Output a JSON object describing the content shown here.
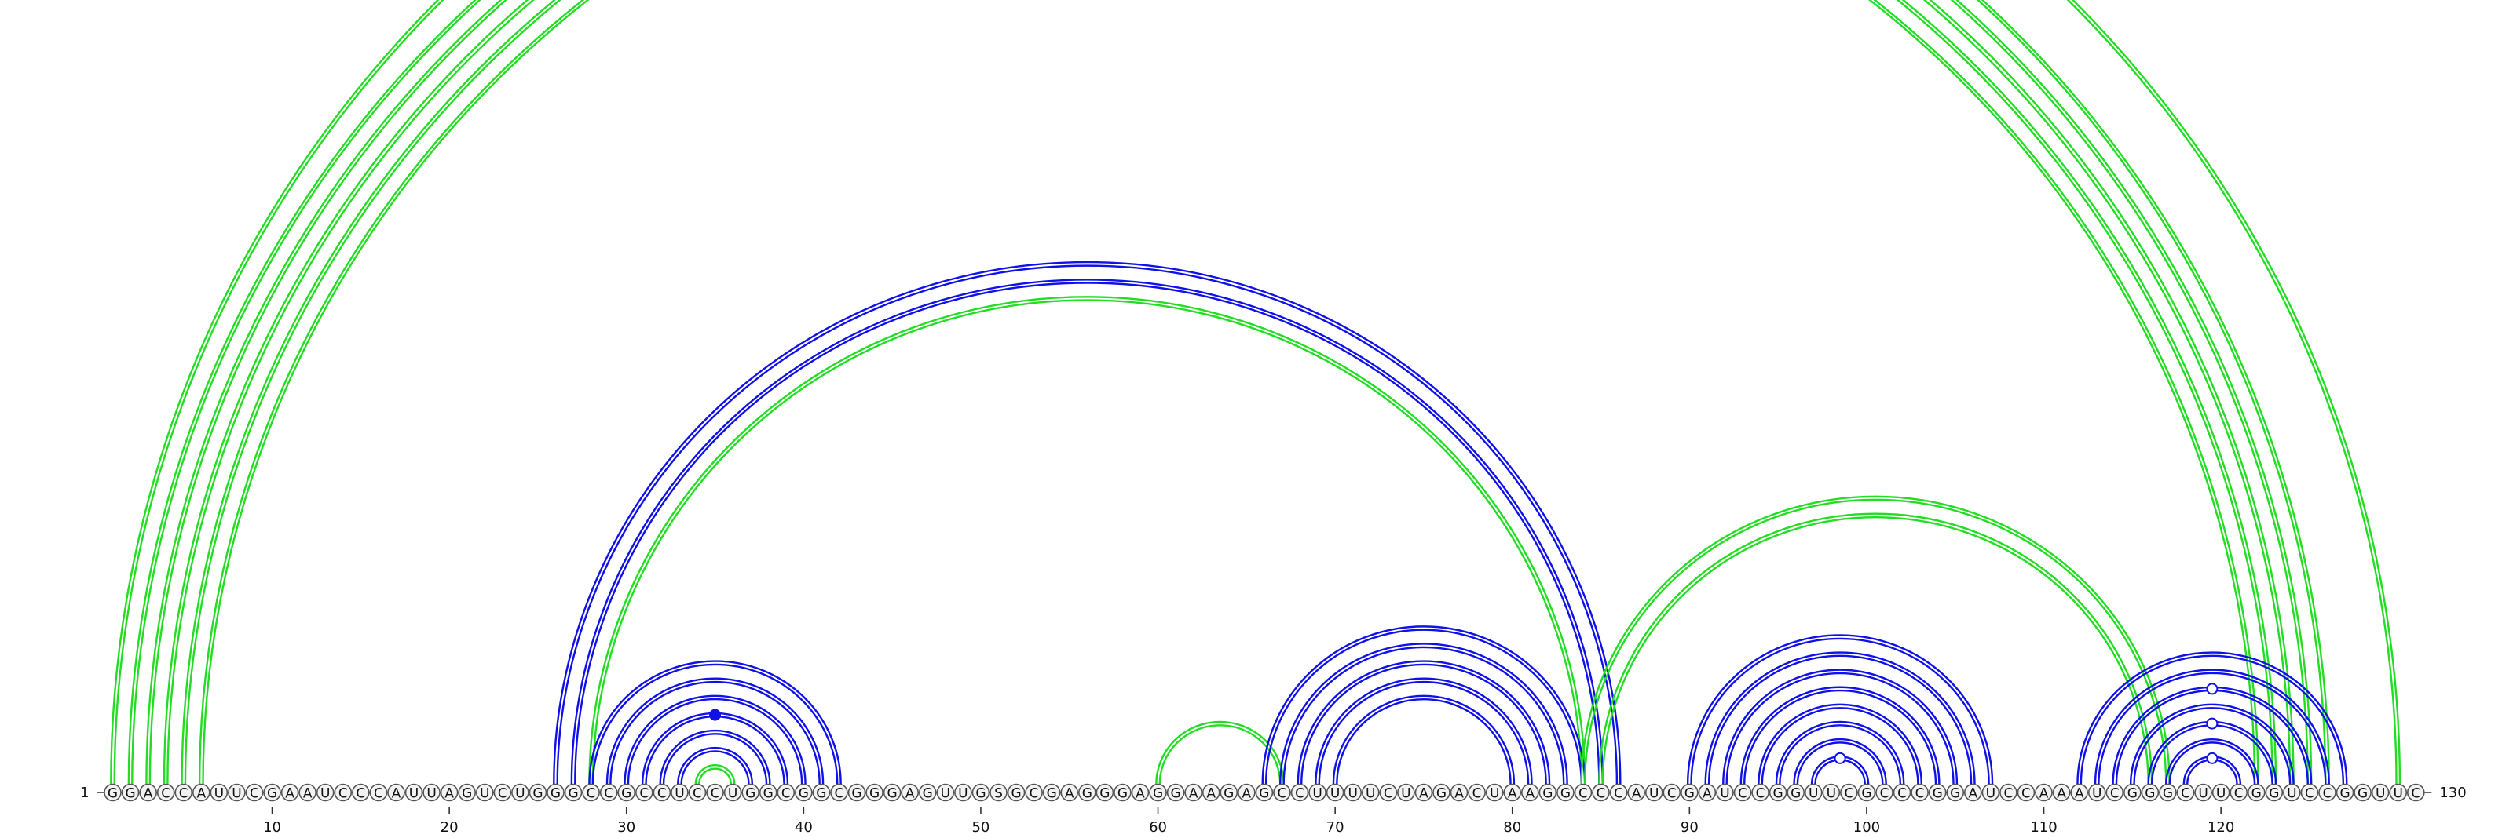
{
  "sequence": "GGACCAUUCGAAUCCCAUUAGUCUGGGCCGCCUCCUGGCGGCGGGAGUUGSGCGAGGGAGGAAGAGCCUUUUCUAGACUAAGGCCCAUCGAUCCGGUUCGCCCGGAUCCAAAUCGGGCUUCGGUCCGGUUC",
  "start_label": "1",
  "end_label": "130",
  "ticks": [
    {
      "pos": 10,
      "label": "10"
    },
    {
      "pos": 20,
      "label": "20"
    },
    {
      "pos": 30,
      "label": "30"
    },
    {
      "pos": 40,
      "label": "40"
    },
    {
      "pos": 50,
      "label": "50"
    },
    {
      "pos": 60,
      "label": "60"
    },
    {
      "pos": 70,
      "label": "70"
    },
    {
      "pos": 80,
      "label": "80"
    },
    {
      "pos": 90,
      "label": "90"
    },
    {
      "pos": 100,
      "label": "100"
    },
    {
      "pos": 110,
      "label": "110"
    },
    {
      "pos": 120,
      "label": "120"
    }
  ],
  "colors": {
    "blue": "#1010e8",
    "green": "#22dd22",
    "nucleotide_stroke": "#555555",
    "nucleotide_fill": "#f2f2f2",
    "text": "#111111"
  },
  "arcs": [
    {
      "i": 1,
      "j": 130,
      "c": "green"
    },
    {
      "i": 2,
      "j": 126,
      "c": "green"
    },
    {
      "i": 3,
      "j": 125,
      "c": "green"
    },
    {
      "i": 4,
      "j": 124,
      "c": "green"
    },
    {
      "i": 5,
      "j": 123,
      "c": "green"
    },
    {
      "i": 6,
      "j": 122,
      "c": "green"
    },
    {
      "i": 26,
      "j": 86,
      "c": "blue"
    },
    {
      "i": 27,
      "j": 85,
      "c": "blue"
    },
    {
      "i": 28,
      "j": 84,
      "c": "green"
    },
    {
      "i": 28,
      "j": 42,
      "c": "blue"
    },
    {
      "i": 29,
      "j": 41,
      "c": "blue"
    },
    {
      "i": 30,
      "j": 40,
      "c": "blue"
    },
    {
      "i": 31,
      "j": 39,
      "c": "blue"
    },
    {
      "i": 32,
      "j": 38,
      "c": "blue"
    },
    {
      "i": 33,
      "j": 37,
      "c": "blue"
    },
    {
      "i": 34,
      "j": 36,
      "c": "green"
    },
    {
      "i": 60,
      "j": 67,
      "c": "green"
    },
    {
      "i": 66,
      "j": 84,
      "c": "blue"
    },
    {
      "i": 67,
      "j": 83,
      "c": "blue"
    },
    {
      "i": 68,
      "j": 82,
      "c": "blue"
    },
    {
      "i": 69,
      "j": 81,
      "c": "blue"
    },
    {
      "i": 70,
      "j": 80,
      "c": "blue"
    },
    {
      "i": 84,
      "j": 117,
      "c": "green"
    },
    {
      "i": 85,
      "j": 116,
      "c": "green"
    },
    {
      "i": 90,
      "j": 107,
      "c": "blue"
    },
    {
      "i": 91,
      "j": 106,
      "c": "blue"
    },
    {
      "i": 92,
      "j": 105,
      "c": "blue"
    },
    {
      "i": 93,
      "j": 104,
      "c": "blue"
    },
    {
      "i": 94,
      "j": 103,
      "c": "blue"
    },
    {
      "i": 95,
      "j": 102,
      "c": "blue"
    },
    {
      "i": 96,
      "j": 101,
      "c": "blue"
    },
    {
      "i": 97,
      "j": 100,
      "c": "blue"
    },
    {
      "i": 112,
      "j": 127,
      "c": "blue"
    },
    {
      "i": 113,
      "j": 126,
      "c": "blue"
    },
    {
      "i": 114,
      "j": 125,
      "c": "blue"
    },
    {
      "i": 115,
      "j": 124,
      "c": "blue"
    },
    {
      "i": 116,
      "j": 123,
      "c": "blue"
    },
    {
      "i": 117,
      "j": 122,
      "c": "blue"
    },
    {
      "i": 118,
      "j": 121,
      "c": "blue"
    }
  ],
  "markers": [
    {
      "arc": 0,
      "fill": "open"
    },
    {
      "arc": 12,
      "fill": "solid"
    },
    {
      "arc": 31,
      "fill": "open"
    },
    {
      "arc": 34,
      "fill": "open"
    },
    {
      "arc": 36,
      "fill": "open"
    },
    {
      "arc": 38,
      "fill": "open"
    }
  ]
}
